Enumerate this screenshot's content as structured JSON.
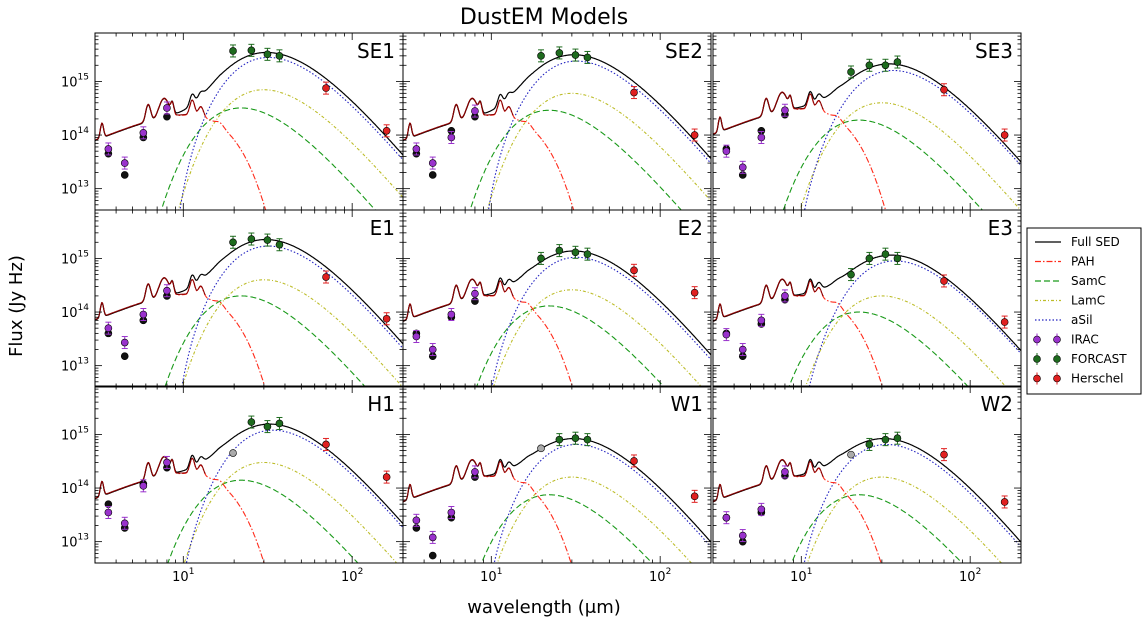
{
  "chart_data": {
    "type": "line",
    "title": "DustEM Models",
    "xlabel": "wavelength (μm)",
    "ylabel": "Flux (Jy Hz)",
    "xscale": "log",
    "yscale": "log",
    "xlim": [
      3,
      200
    ],
    "ylim": [
      4000000000000.0,
      8000000000000000.0
    ],
    "x_ticks": [
      {
        "value": 10,
        "label": "10",
        "exp": "1"
      },
      {
        "value": 100,
        "label": "10",
        "exp": "2"
      }
    ],
    "y_ticks": [
      {
        "value": 10000000000000.0,
        "label": "10",
        "exp": "13"
      },
      {
        "value": 100000000000000.0,
        "label": "10",
        "exp": "14"
      },
      {
        "value": 1000000000000000.0,
        "label": "10",
        "exp": "15"
      }
    ],
    "grid": false,
    "legend_position": "right-middle",
    "colors": {
      "full": "#000000",
      "pah": "#ff2a1a",
      "samc": "#1a9a1a",
      "lamc": "#bdbd2a",
      "asil": "#2020c0",
      "irac": "#9932cc",
      "forcast": "#1e6b1e",
      "herschel": "#e02020",
      "black_point": "#111111",
      "grey_point": "#aaaaaa",
      "pah_model_line": "#8b0000"
    },
    "legend": [
      {
        "key": "full",
        "label": "Full SED",
        "kind": "line",
        "dash": ""
      },
      {
        "key": "pah",
        "label": "PAH",
        "kind": "line",
        "dash": "6 2 1.5 2"
      },
      {
        "key": "samc",
        "label": "SamC",
        "kind": "line",
        "dash": "6 3"
      },
      {
        "key": "lamc",
        "label": "LamC",
        "kind": "line",
        "dash": "3 2 1 2"
      },
      {
        "key": "asil",
        "label": "aSil",
        "kind": "line",
        "dash": "1.5 2"
      },
      {
        "key": "irac",
        "label": "IRAC",
        "kind": "point"
      },
      {
        "key": "forcast",
        "label": "FORCAST",
        "kind": "point"
      },
      {
        "key": "herschel",
        "label": "Herschel",
        "kind": "point"
      }
    ],
    "panels": [
      {
        "name": "SE1",
        "full_peak": 3500000000000000.0,
        "full_peak_lambda": 27,
        "pah_scale": 1.0,
        "samc_peak": 320000000000000.0,
        "lamc_peak": 700000000000000.0,
        "asil_peak": 2800000000000000.0,
        "asil_peak_lambda": 32,
        "irac": [
          [
            3.6,
            55000000000000.0
          ],
          [
            4.5,
            30000000000000.0
          ],
          [
            5.8,
            110000000000000.0
          ],
          [
            8.0,
            320000000000000.0
          ]
        ],
        "black": [
          [
            3.6,
            45000000000000.0
          ],
          [
            4.5,
            18000000000000.0
          ],
          [
            5.8,
            90000000000000.0
          ],
          [
            8.0,
            220000000000000.0
          ]
        ],
        "grey": [],
        "forcast": [
          [
            19.7,
            3700000000000000.0
          ],
          [
            25.3,
            3800000000000000.0
          ],
          [
            31.5,
            3200000000000000.0
          ],
          [
            37.1,
            3000000000000000.0
          ]
        ],
        "herschel": [
          [
            70,
            750000000000000.0
          ],
          [
            160,
            120000000000000.0
          ]
        ]
      },
      {
        "name": "SE2",
        "full_peak": 3200000000000000.0,
        "full_peak_lambda": 27,
        "pah_scale": 1.0,
        "samc_peak": 290000000000000.0,
        "lamc_peak": 600000000000000.0,
        "asil_peak": 2400000000000000.0,
        "asil_peak_lambda": 32,
        "irac": [
          [
            3.6,
            55000000000000.0
          ],
          [
            4.5,
            30000000000000.0
          ],
          [
            5.8,
            90000000000000.0
          ],
          [
            8.0,
            280000000000000.0
          ]
        ],
        "black": [
          [
            3.6,
            45000000000000.0
          ],
          [
            4.5,
            18000000000000.0
          ],
          [
            5.8,
            120000000000000.0
          ],
          [
            8.0,
            220000000000000.0
          ]
        ],
        "grey": [],
        "forcast": [
          [
            19.7,
            3000000000000000.0
          ],
          [
            25.3,
            3400000000000000.0
          ],
          [
            31.5,
            3100000000000000.0
          ],
          [
            37.1,
            2800000000000000.0
          ]
        ],
        "herschel": [
          [
            70,
            620000000000000.0
          ],
          [
            160,
            100000000000000.0
          ]
        ]
      },
      {
        "name": "SE3",
        "full_peak": 2200000000000000.0,
        "full_peak_lambda": 32,
        "pah_scale": 1.3,
        "samc_peak": 190000000000000.0,
        "lamc_peak": 400000000000000.0,
        "asil_peak": 1600000000000000.0,
        "asil_peak_lambda": 35,
        "irac": [
          [
            3.6,
            50000000000000.0
          ],
          [
            4.5,
            25000000000000.0
          ],
          [
            5.8,
            90000000000000.0
          ],
          [
            8.0,
            290000000000000.0
          ]
        ],
        "black": [
          [
            3.6,
            55000000000000.0
          ],
          [
            4.5,
            18000000000000.0
          ],
          [
            5.8,
            120000000000000.0
          ],
          [
            8.0,
            240000000000000.0
          ]
        ],
        "grey": [],
        "forcast": [
          [
            19.7,
            1500000000000000.0
          ],
          [
            25.3,
            2000000000000000.0
          ],
          [
            31.5,
            2000000000000000.0
          ],
          [
            37.1,
            2300000000000000.0
          ]
        ],
        "herschel": [
          [
            70,
            700000000000000.0
          ],
          [
            160,
            100000000000000.0
          ]
        ]
      },
      {
        "name": "E1",
        "full_peak": 2300000000000000.0,
        "full_peak_lambda": 27,
        "pah_scale": 0.9,
        "samc_peak": 200000000000000.0,
        "lamc_peak": 400000000000000.0,
        "asil_peak": 1700000000000000.0,
        "asil_peak_lambda": 32,
        "irac": [
          [
            3.6,
            50000000000000.0
          ],
          [
            4.5,
            27000000000000.0
          ],
          [
            5.8,
            90000000000000.0
          ],
          [
            8.0,
            250000000000000.0
          ]
        ],
        "black": [
          [
            3.6,
            40000000000000.0
          ],
          [
            4.5,
            15000000000000.0
          ],
          [
            5.8,
            70000000000000.0
          ],
          [
            8.0,
            200000000000000.0
          ]
        ],
        "grey": [],
        "forcast": [
          [
            19.7,
            2000000000000000.0
          ],
          [
            25.3,
            2300000000000000.0
          ],
          [
            31.5,
            2200000000000000.0
          ],
          [
            37.1,
            1800000000000000.0
          ]
        ],
        "herschel": [
          [
            70,
            450000000000000.0
          ],
          [
            160,
            75000000000000.0
          ]
        ]
      },
      {
        "name": "E2",
        "full_peak": 1400000000000000.0,
        "full_peak_lambda": 27,
        "pah_scale": 0.85,
        "samc_peak": 130000000000000.0,
        "lamc_peak": 260000000000000.0,
        "asil_peak": 1050000000000000.0,
        "asil_peak_lambda": 32,
        "irac": [
          [
            3.6,
            35000000000000.0
          ],
          [
            4.5,
            20000000000000.0
          ],
          [
            5.8,
            90000000000000.0
          ],
          [
            8.0,
            220000000000000.0
          ]
        ],
        "black": [
          [
            3.6,
            40000000000000.0
          ],
          [
            4.5,
            15000000000000.0
          ],
          [
            5.8,
            80000000000000.0
          ],
          [
            8.0,
            160000000000000.0
          ]
        ],
        "grey": [],
        "forcast": [
          [
            19.7,
            1000000000000000.0
          ],
          [
            25.3,
            1400000000000000.0
          ],
          [
            31.5,
            1300000000000000.0
          ],
          [
            37.1,
            1200000000000000.0
          ]
        ],
        "herschel": [
          [
            70,
            600000000000000.0
          ],
          [
            160,
            230000000000000.0
          ]
        ]
      },
      {
        "name": "E3",
        "full_peak": 1200000000000000.0,
        "full_peak_lambda": 33,
        "pah_scale": 0.85,
        "samc_peak": 100000000000000.0,
        "lamc_peak": 200000000000000.0,
        "asil_peak": 900000000000000.0,
        "asil_peak_lambda": 36,
        "irac": [
          [
            3.6,
            38000000000000.0
          ],
          [
            4.5,
            20000000000000.0
          ],
          [
            5.8,
            70000000000000.0
          ],
          [
            8.0,
            200000000000000.0
          ]
        ],
        "black": [
          [
            3.6,
            40000000000000.0
          ],
          [
            4.5,
            15000000000000.0
          ],
          [
            5.8,
            60000000000000.0
          ],
          [
            8.0,
            170000000000000.0
          ]
        ],
        "grey": [],
        "forcast": [
          [
            19.7,
            500000000000000.0
          ],
          [
            25.3,
            1000000000000000.0
          ],
          [
            31.5,
            1200000000000000.0
          ],
          [
            37.1,
            1000000000000000.0
          ]
        ],
        "herschel": [
          [
            70,
            380000000000000.0
          ],
          [
            160,
            65000000000000.0
          ]
        ]
      },
      {
        "name": "H1",
        "full_peak": 1600000000000000.0,
        "full_peak_lambda": 30,
        "pah_scale": 0.8,
        "samc_peak": 140000000000000.0,
        "lamc_peak": 300000000000000.0,
        "asil_peak": 1200000000000000.0,
        "asil_peak_lambda": 34,
        "irac": [
          [
            3.6,
            35000000000000.0
          ],
          [
            4.5,
            22000000000000.0
          ],
          [
            5.8,
            110000000000000.0
          ],
          [
            8.0,
            300000000000000.0
          ]
        ],
        "black": [
          [
            3.6,
            50000000000000.0
          ],
          [
            4.5,
            18000000000000.0
          ],
          [
            5.8,
            120000000000000.0
          ],
          [
            8.0,
            240000000000000.0
          ]
        ],
        "grey": [
          [
            19.7,
            450000000000000.0
          ]
        ],
        "forcast": [
          [
            25.3,
            1700000000000000.0
          ],
          [
            31.5,
            1400000000000000.0
          ],
          [
            37.1,
            1600000000000000.0
          ]
        ],
        "herschel": [
          [
            70,
            650000000000000.0
          ],
          [
            160,
            160000000000000.0
          ]
        ]
      },
      {
        "name": "W1",
        "full_peak": 850000000000000.0,
        "full_peak_lambda": 28,
        "pah_scale": 0.7,
        "samc_peak": 75000000000000.0,
        "lamc_peak": 160000000000000.0,
        "asil_peak": 650000000000000.0,
        "asil_peak_lambda": 32,
        "irac": [
          [
            3.6,
            25000000000000.0
          ],
          [
            4.5,
            12000000000000.0
          ],
          [
            5.8,
            35000000000000.0
          ],
          [
            8.0,
            200000000000000.0
          ]
        ],
        "black": [
          [
            3.6,
            18000000000000.0
          ],
          [
            4.5,
            5500000000000.0
          ],
          [
            5.8,
            28000000000000.0
          ],
          [
            8.0,
            160000000000000.0
          ]
        ],
        "grey": [
          [
            19.7,
            550000000000000.0
          ]
        ],
        "forcast": [
          [
            25.3,
            800000000000000.0
          ],
          [
            31.5,
            850000000000000.0
          ],
          [
            37.1,
            800000000000000.0
          ]
        ],
        "herschel": [
          [
            70,
            320000000000000.0
          ],
          [
            160,
            70000000000000.0
          ]
        ]
      },
      {
        "name": "W2",
        "full_peak": 850000000000000.0,
        "full_peak_lambda": 28,
        "pah_scale": 0.7,
        "samc_peak": 75000000000000.0,
        "lamc_peak": 160000000000000.0,
        "asil_peak": 650000000000000.0,
        "asil_peak_lambda": 32,
        "irac": [
          [
            3.6,
            28000000000000.0
          ],
          [
            4.5,
            13000000000000.0
          ],
          [
            5.8,
            40000000000000.0
          ],
          [
            8.0,
            200000000000000.0
          ]
        ],
        "black": [
          [
            3.6,
            28000000000000.0
          ],
          [
            4.5,
            10000000000000.0
          ],
          [
            5.8,
            35000000000000.0
          ],
          [
            8.0,
            170000000000000.0
          ]
        ],
        "grey": [
          [
            19.7,
            420000000000000.0
          ]
        ],
        "forcast": [
          [
            25.3,
            650000000000000.0
          ],
          [
            31.5,
            800000000000000.0
          ],
          [
            37.1,
            850000000000000.0
          ]
        ],
        "herschel": [
          [
            70,
            420000000000000.0
          ],
          [
            160,
            55000000000000.0
          ]
        ]
      }
    ]
  }
}
